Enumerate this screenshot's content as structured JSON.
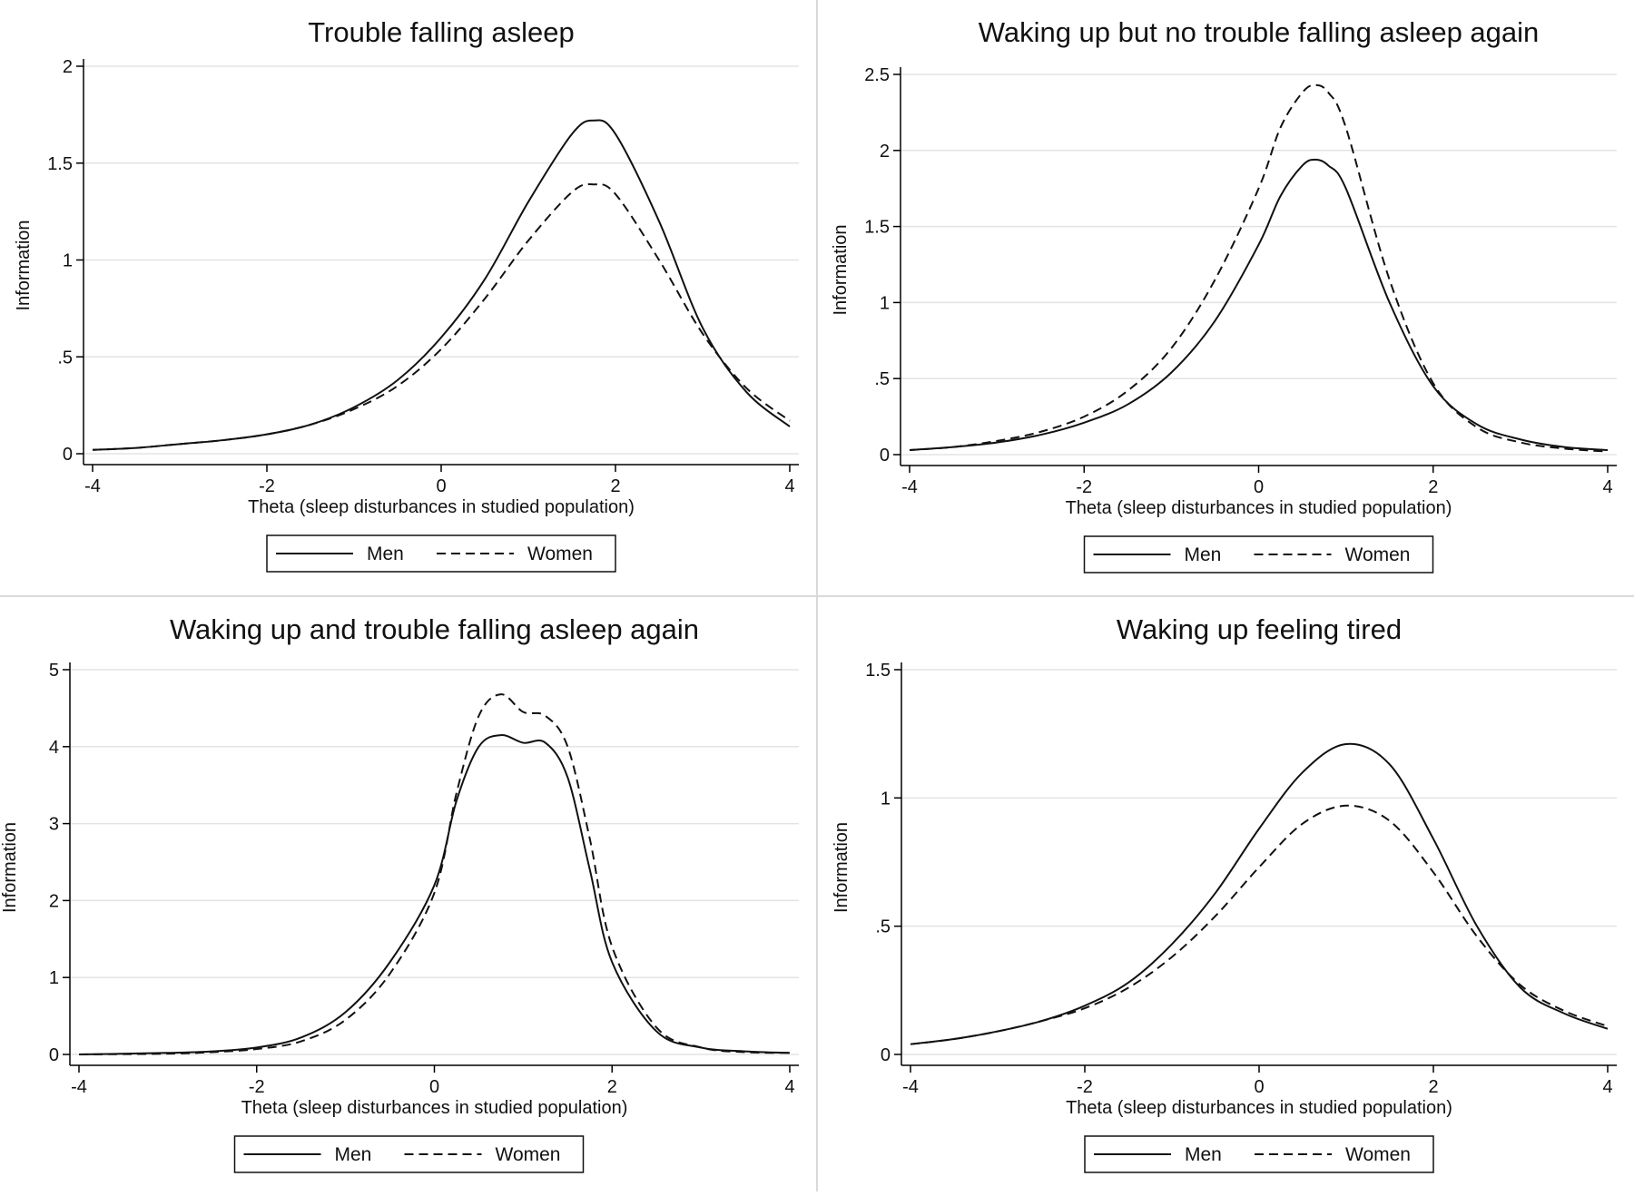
{
  "chart_data": [
    {
      "type": "line",
      "title": "Trouble falling asleep",
      "xlabel": "Theta (sleep disturbances in studied population)",
      "ylabel": "Information",
      "xlim": [
        -4,
        4
      ],
      "ylim": [
        0,
        2
      ],
      "xticks": [
        -4,
        -2,
        0,
        2,
        4
      ],
      "xtick_labels": [
        "-4",
        "-2",
        "0",
        "2",
        "4"
      ],
      "yticks": [
        0,
        0.5,
        1,
        1.5,
        2
      ],
      "ytick_labels": [
        "0",
        ".5",
        "1",
        "1.5",
        "2"
      ],
      "grid": true,
      "legend_position": "bottom",
      "x": [
        -4,
        -3.5,
        -3,
        -2.5,
        -2,
        -1.5,
        -1,
        -0.5,
        0,
        0.5,
        1,
        1.5,
        1.75,
        2,
        2.5,
        3,
        3.5,
        4
      ],
      "series": [
        {
          "name": "Men",
          "style": "solid",
          "values": [
            0.02,
            0.03,
            0.05,
            0.07,
            0.1,
            0.15,
            0.24,
            0.38,
            0.6,
            0.9,
            1.3,
            1.65,
            1.72,
            1.65,
            1.2,
            0.65,
            0.32,
            0.14
          ]
        },
        {
          "name": "Women",
          "style": "dashed",
          "values": [
            0.02,
            0.03,
            0.05,
            0.07,
            0.1,
            0.15,
            0.23,
            0.35,
            0.54,
            0.8,
            1.1,
            1.35,
            1.39,
            1.34,
            1.0,
            0.62,
            0.34,
            0.17
          ]
        }
      ]
    },
    {
      "type": "line",
      "title": "Waking up but no trouble falling asleep again",
      "xlabel": "Theta (sleep disturbances in studied population)",
      "ylabel": "Information",
      "xlim": [
        -4,
        4
      ],
      "ylim": [
        0,
        2.5
      ],
      "xticks": [
        -4,
        -2,
        0,
        2,
        4
      ],
      "xtick_labels": [
        "-4",
        "-2",
        "0",
        "2",
        "4"
      ],
      "yticks": [
        0,
        0.5,
        1,
        1.5,
        2,
        2.5
      ],
      "ytick_labels": [
        "0",
        ".5",
        "1",
        "1.5",
        "2",
        "2.5"
      ],
      "grid": true,
      "legend_position": "bottom",
      "x": [
        -4,
        -3.5,
        -3,
        -2.5,
        -2,
        -1.5,
        -1,
        -0.5,
        0,
        0.25,
        0.5,
        0.65,
        0.8,
        1,
        1.5,
        2,
        2.5,
        3,
        3.5,
        4
      ],
      "series": [
        {
          "name": "Men",
          "style": "solid",
          "values": [
            0.03,
            0.05,
            0.08,
            0.13,
            0.21,
            0.33,
            0.54,
            0.88,
            1.38,
            1.7,
            1.9,
            1.94,
            1.9,
            1.75,
            1.0,
            0.45,
            0.2,
            0.1,
            0.05,
            0.03
          ]
        },
        {
          "name": "Women",
          "style": "dashed",
          "values": [
            0.03,
            0.05,
            0.09,
            0.15,
            0.25,
            0.42,
            0.7,
            1.15,
            1.75,
            2.15,
            2.38,
            2.43,
            2.38,
            2.15,
            1.15,
            0.47,
            0.18,
            0.08,
            0.04,
            0.02
          ]
        }
      ]
    },
    {
      "type": "line",
      "title": "Waking up and trouble falling asleep again",
      "xlabel": "Theta (sleep disturbances in studied population)",
      "ylabel": "Information",
      "xlim": [
        -4,
        4
      ],
      "ylim": [
        0,
        5
      ],
      "xticks": [
        -4,
        -2,
        0,
        2,
        4
      ],
      "xtick_labels": [
        "-4",
        "-2",
        "0",
        "2",
        "4"
      ],
      "yticks": [
        0,
        1,
        2,
        3,
        4,
        5
      ],
      "ytick_labels": [
        "0",
        "1",
        "2",
        "3",
        "4",
        "5"
      ],
      "grid": true,
      "legend_position": "bottom",
      "x": [
        -4,
        -3,
        -2.5,
        -2,
        -1.5,
        -1,
        -0.5,
        0,
        0.25,
        0.5,
        0.75,
        1,
        1.25,
        1.5,
        1.75,
        2,
        2.5,
        3,
        3.5,
        4
      ],
      "series": [
        {
          "name": "Men",
          "style": "solid",
          "values": [
            0.0,
            0.02,
            0.04,
            0.09,
            0.22,
            0.55,
            1.2,
            2.2,
            3.3,
            4.0,
            4.15,
            4.05,
            4.05,
            3.6,
            2.4,
            1.2,
            0.3,
            0.09,
            0.04,
            0.02
          ]
        },
        {
          "name": "Women",
          "style": "dashed",
          "values": [
            0.0,
            0.01,
            0.03,
            0.07,
            0.17,
            0.45,
            1.05,
            2.1,
            3.4,
            4.4,
            4.68,
            4.45,
            4.4,
            4.0,
            2.8,
            1.4,
            0.35,
            0.09,
            0.03,
            0.02
          ]
        }
      ]
    },
    {
      "type": "line",
      "title": "Waking up feeling tired",
      "xlabel": "Theta (sleep disturbances in studied population)",
      "ylabel": "Information",
      "xlim": [
        -4,
        4
      ],
      "ylim": [
        0,
        1.5
      ],
      "xticks": [
        -4,
        -2,
        0,
        2,
        4
      ],
      "xtick_labels": [
        "-4",
        "-2",
        "0",
        "2",
        "4"
      ],
      "yticks": [
        0,
        0.5,
        1,
        1.5
      ],
      "ytick_labels": [
        "0",
        ".5",
        "1",
        "1.5"
      ],
      "grid": true,
      "legend_position": "bottom",
      "x": [
        -4,
        -3.5,
        -3,
        -2.5,
        -2,
        -1.5,
        -1,
        -0.5,
        0,
        0.5,
        1,
        1.5,
        2,
        2.5,
        3,
        3.5,
        4
      ],
      "series": [
        {
          "name": "Men",
          "style": "solid",
          "values": [
            0.04,
            0.06,
            0.09,
            0.13,
            0.19,
            0.28,
            0.43,
            0.63,
            0.88,
            1.1,
            1.21,
            1.13,
            0.84,
            0.5,
            0.26,
            0.16,
            0.1
          ]
        },
        {
          "name": "Women",
          "style": "dashed",
          "values": [
            0.04,
            0.06,
            0.09,
            0.13,
            0.18,
            0.26,
            0.38,
            0.54,
            0.73,
            0.9,
            0.97,
            0.91,
            0.71,
            0.46,
            0.27,
            0.17,
            0.11
          ]
        }
      ]
    }
  ]
}
